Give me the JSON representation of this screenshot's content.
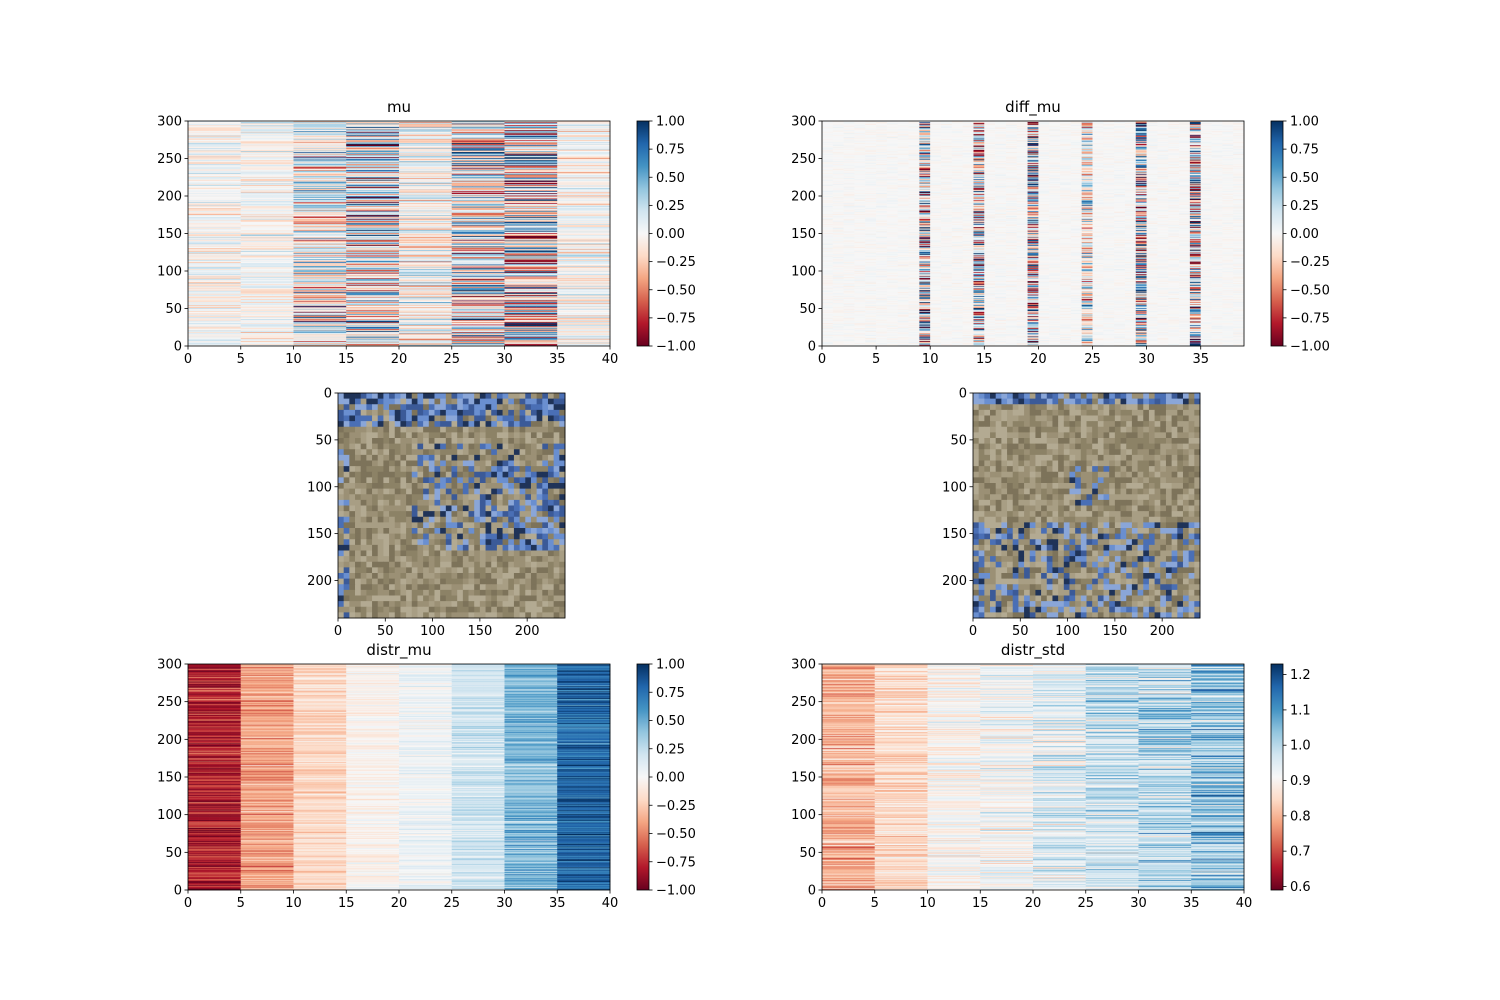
{
  "figure": {
    "colorscales": {
      "RdBu": [
        "#67001f",
        "#b2182b",
        "#d6604d",
        "#f4a582",
        "#fddbc7",
        "#f7f7f7",
        "#d1e5f0",
        "#92c5de",
        "#4393c3",
        "#2166ac",
        "#053061"
      ]
    },
    "image_palettes": {
      "sand": [
        "#8c8266",
        "#9b9075",
        "#a89e84",
        "#7d735a",
        "#b3aa92"
      ],
      "blue": [
        "#4a6fb5",
        "#6a8fd0",
        "#3b5a98",
        "#8aa6d8",
        "#1f3358"
      ]
    }
  },
  "chart_data": [
    {
      "type": "heatmap",
      "title": "mu",
      "xlabel": "",
      "ylabel": "",
      "xlim": [
        0,
        40
      ],
      "ylim": [
        0,
        300
      ],
      "x_ticks": [
        "0",
        "5",
        "10",
        "15",
        "20",
        "25",
        "30",
        "35",
        "40"
      ],
      "y_ticks": [
        "0",
        "50",
        "100",
        "150",
        "200",
        "250",
        "300"
      ],
      "rows": 300,
      "cols": 40,
      "block_width": 5,
      "block_amplitudes": [
        0.2,
        0.2,
        0.55,
        0.75,
        0.35,
        0.7,
        0.85,
        0.25
      ],
      "block_bias": [
        0,
        0,
        0,
        0,
        0,
        0,
        0,
        0
      ],
      "colormap": "RdBu",
      "vmin": -1.0,
      "vmax": 1.0,
      "colorbar_ticks": [
        "1.00",
        "0.75",
        "0.50",
        "0.25",
        "0.00",
        "−0.25",
        "−0.50",
        "−0.75",
        "−1.00"
      ]
    },
    {
      "type": "heatmap",
      "title": "diff_mu",
      "xlabel": "",
      "ylabel": "",
      "xlim": [
        0,
        39
      ],
      "ylim": [
        0,
        300
      ],
      "x_ticks": [
        "0",
        "5",
        "10",
        "15",
        "20",
        "25",
        "30",
        "35"
      ],
      "y_ticks": [
        "0",
        "50",
        "100",
        "150",
        "200",
        "250",
        "300"
      ],
      "rows": 300,
      "cols": 39,
      "strong_columns": [
        9,
        14,
        19,
        24,
        29,
        34
      ],
      "strong_amplitudes": [
        0.9,
        0.85,
        1.0,
        0.55,
        0.95,
        0.9
      ],
      "background_amplitude": 0.04,
      "colormap": "RdBu",
      "vmin": -1.0,
      "vmax": 1.0,
      "colorbar_ticks": [
        "1.00",
        "0.75",
        "0.50",
        "0.25",
        "0.00",
        "−0.25",
        "−0.50",
        "−0.75",
        "−1.00"
      ]
    },
    {
      "type": "image",
      "title": "",
      "xlim": [
        0,
        240
      ],
      "ylim": [
        240,
        0
      ],
      "x_ticks": [
        "0",
        "50",
        "100",
        "150",
        "200"
      ],
      "y_ticks": [
        "0",
        "50",
        "100",
        "150",
        "200"
      ],
      "dominant_colors": [
        "sand",
        "blue"
      ]
    },
    {
      "type": "image",
      "title": "",
      "xlim": [
        0,
        240
      ],
      "ylim": [
        240,
        0
      ],
      "x_ticks": [
        "0",
        "50",
        "100",
        "150",
        "200"
      ],
      "y_ticks": [
        "0",
        "50",
        "100",
        "150",
        "200"
      ],
      "dominant_colors": [
        "sand",
        "blue"
      ]
    },
    {
      "type": "heatmap",
      "title": "distr_mu",
      "xlabel": "",
      "ylabel": "",
      "xlim": [
        0,
        40
      ],
      "ylim": [
        0,
        300
      ],
      "x_ticks": [
        "0",
        "5",
        "10",
        "15",
        "20",
        "25",
        "30",
        "35",
        "40"
      ],
      "y_ticks": [
        "0",
        "50",
        "100",
        "150",
        "200",
        "250",
        "300"
      ],
      "rows": 300,
      "cols": 40,
      "block_width": 5,
      "block_bias": [
        -0.8,
        -0.4,
        -0.2,
        -0.05,
        0.05,
        0.2,
        0.45,
        0.8
      ],
      "block_amplitudes": [
        0.2,
        0.15,
        0.12,
        0.1,
        0.1,
        0.12,
        0.18,
        0.2
      ],
      "colormap": "RdBu",
      "vmin": -1.0,
      "vmax": 1.0,
      "colorbar_ticks": [
        "1.00",
        "0.75",
        "0.50",
        "0.25",
        "0.00",
        "−0.25",
        "−0.50",
        "−0.75",
        "−1.00"
      ]
    },
    {
      "type": "heatmap",
      "title": "distr_std",
      "xlabel": "",
      "ylabel": "",
      "xlim": [
        0,
        40
      ],
      "ylim": [
        0,
        300
      ],
      "x_ticks": [
        "0",
        "5",
        "10",
        "15",
        "20",
        "25",
        "30",
        "35",
        "40"
      ],
      "y_ticks": [
        "0",
        "50",
        "100",
        "150",
        "200",
        "250",
        "300"
      ],
      "rows": 300,
      "cols": 40,
      "block_width": 5,
      "block_bias": [
        0.8,
        0.85,
        0.9,
        0.92,
        0.95,
        0.98,
        1.0,
        1.03
      ],
      "block_amplitudes": [
        0.06,
        0.05,
        0.05,
        0.06,
        0.07,
        0.08,
        0.09,
        0.1
      ],
      "colormap": "RdBu",
      "vmin": 0.59,
      "vmax": 1.23,
      "colorbar_ticks": [
        "1.2",
        "1.1",
        "1.0",
        "0.9",
        "0.8",
        "0.7",
        "0.6"
      ],
      "colorbar_tick_values": [
        1.2,
        1.1,
        1.0,
        0.9,
        0.8,
        0.7,
        0.6
      ]
    }
  ]
}
